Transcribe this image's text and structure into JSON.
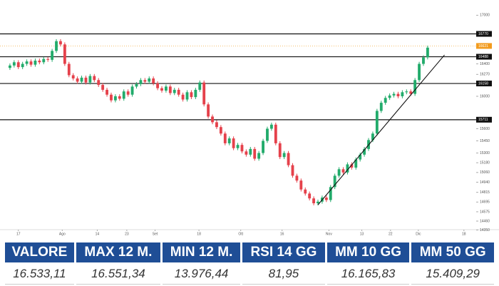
{
  "chart_data": {
    "type": "candlestick",
    "xlim": [
      -1,
      110
    ],
    "xticks": [
      {
        "value": 2,
        "label": "17"
      },
      {
        "value": 12.4,
        "label": "Ago"
      },
      {
        "value": 20.7,
        "label": "14"
      },
      {
        "value": 27.7,
        "label": "23"
      },
      {
        "value": 34.4,
        "label": "Set"
      },
      {
        "value": 44.8,
        "label": "18"
      },
      {
        "value": 54.7,
        "label": "Ott"
      },
      {
        "value": 64.5,
        "label": "16"
      },
      {
        "value": 75.6,
        "label": "Nov"
      },
      {
        "value": 83.4,
        "label": "13"
      },
      {
        "value": 90.2,
        "label": "22"
      },
      {
        "value": 96.8,
        "label": "Dic"
      },
      {
        "value": 107.6,
        "label": "18"
      }
    ],
    "ylim": [
      14240,
      17100
    ],
    "yticks": [
      17000,
      16400,
      16270,
      16000,
      15600,
      15450,
      15300,
      15180,
      15060,
      14940,
      14815,
      14695,
      14575,
      14460,
      14350
    ],
    "up_color": "#22ab6b",
    "down_color": "#e5414b",
    "open": [
      16350,
      16380,
      16420,
      16360,
      16400,
      16430,
      16390,
      16440,
      16420,
      16460,
      16450,
      16560,
      16680,
      16640,
      16400,
      16260,
      16220,
      16180,
      16230,
      16170,
      16250,
      16200,
      16140,
      16080,
      16020,
      15950,
      16000,
      15970,
      16060,
      16020,
      16120,
      16150,
      16200,
      16180,
      16220,
      16160,
      16100,
      16070,
      16120,
      16040,
      16080,
      16020,
      15960,
      16050,
      15990,
      16080,
      16170,
      15900,
      15750,
      15680,
      15620,
      15540,
      15420,
      15480,
      15360,
      15400,
      15320,
      15280,
      15350,
      15230,
      15300,
      15450,
      15600,
      15650,
      15420,
      15250,
      15300,
      15150,
      15020,
      14960,
      14850,
      14800,
      14740,
      14680,
      14700,
      14750,
      14720,
      14880,
      15020,
      15100,
      15060,
      15160,
      15120,
      15220,
      15280,
      15350,
      15460,
      15540,
      15820,
      15920,
      15980,
      16010,
      16030,
      16000,
      16050,
      16060,
      16030,
      16200,
      16400,
      16480
    ],
    "high": [
      16405,
      16445,
      16445,
      16425,
      16455,
      16455,
      16465,
      16465,
      16485,
      16485,
      16585,
      16705,
      16705,
      16665,
      16425,
      16285,
      16245,
      16255,
      16255,
      16275,
      16275,
      16225,
      16165,
      16105,
      16045,
      16025,
      16025,
      16085,
      16085,
      16145,
      16175,
      16225,
      16225,
      16245,
      16245,
      16185,
      16125,
      16145,
      16145,
      16105,
      16105,
      16045,
      16075,
      16075,
      16105,
      16195,
      16195,
      15925,
      15775,
      15705,
      15645,
      15565,
      15505,
      15505,
      15425,
      15425,
      15345,
      15375,
      15375,
      15325,
      15475,
      15625,
      15675,
      15675,
      15445,
      15325,
      15325,
      15175,
      15045,
      14985,
      14875,
      14825,
      14765,
      14725,
      14775,
      14775,
      14905,
      15045,
      15125,
      15125,
      15185,
      15185,
      15245,
      15305,
      15375,
      15485,
      15565,
      15845,
      15945,
      16005,
      16035,
      16055,
      16055,
      16075,
      16085,
      16085,
      16225,
      16425,
      16505,
      16625
    ],
    "low": [
      16325,
      16355,
      16335,
      16335,
      16375,
      16365,
      16365,
      16395,
      16395,
      16425,
      16425,
      16535,
      16615,
      16375,
      16235,
      16195,
      16155,
      16155,
      16145,
      16145,
      16175,
      16115,
      16055,
      15995,
      15925,
      15925,
      15945,
      15945,
      15995,
      15995,
      16095,
      16125,
      16155,
      16155,
      16135,
      16075,
      16045,
      16045,
      16015,
      16015,
      15995,
      15935,
      15935,
      15965,
      15965,
      16055,
      15875,
      15725,
      15655,
      15595,
      15515,
      15395,
      15395,
      15335,
      15335,
      15295,
      15255,
      15255,
      15205,
      15205,
      15275,
      15425,
      15575,
      15395,
      15225,
      15225,
      15125,
      14995,
      14935,
      14825,
      14775,
      14715,
      14655,
      14655,
      14675,
      14695,
      14695,
      14855,
      14995,
      15035,
      15035,
      15095,
      15095,
      15195,
      15255,
      15325,
      15435,
      15515,
      15795,
      15895,
      15955,
      15985,
      15975,
      15975,
      16025,
      16005,
      16005,
      16175,
      16375,
      16455
    ],
    "close": [
      16380,
      16420,
      16360,
      16400,
      16430,
      16390,
      16440,
      16420,
      16460,
      16450,
      16560,
      16680,
      16640,
      16400,
      16260,
      16220,
      16180,
      16230,
      16170,
      16250,
      16200,
      16140,
      16080,
      16020,
      15950,
      16000,
      15970,
      16060,
      16020,
      16120,
      16150,
      16200,
      16180,
      16220,
      16160,
      16100,
      16070,
      16120,
      16040,
      16080,
      16020,
      15960,
      16050,
      15990,
      16080,
      16170,
      15900,
      15750,
      15680,
      15620,
      15540,
      15420,
      15480,
      15360,
      15400,
      15320,
      15280,
      15350,
      15230,
      15300,
      15450,
      15600,
      15650,
      15420,
      15250,
      15300,
      15150,
      15020,
      14960,
      14850,
      14800,
      14740,
      14680,
      14700,
      14750,
      14720,
      14880,
      15020,
      15100,
      15060,
      15160,
      15120,
      15220,
      15280,
      15350,
      15460,
      15540,
      15820,
      15920,
      15980,
      16010,
      16030,
      16000,
      16050,
      16060,
      16030,
      16200,
      16400,
      16480,
      16600
    ],
    "levels": [
      {
        "value": 16770,
        "label": "16770"
      },
      {
        "value": 16488,
        "label": "16488"
      },
      {
        "value": 16158,
        "label": "16158"
      },
      {
        "value": 15711,
        "label": "15711"
      }
    ],
    "last_price": {
      "value": 16621,
      "label": "16621",
      "color": "#f29b1d"
    },
    "trendline": {
      "x": [
        73,
        103
      ],
      "values": [
        14660,
        16510
      ]
    }
  },
  "table": {
    "header": [
      "VALORE",
      "MAX 12 M.",
      "MIN 12 M.",
      "RSI 14 GG",
      "MM 10 GG",
      "MM 50 GG"
    ],
    "row": [
      "16.533,11",
      "16.551,34",
      "13.976,44",
      "81,95",
      "16.165,83",
      "15.409,29"
    ]
  }
}
